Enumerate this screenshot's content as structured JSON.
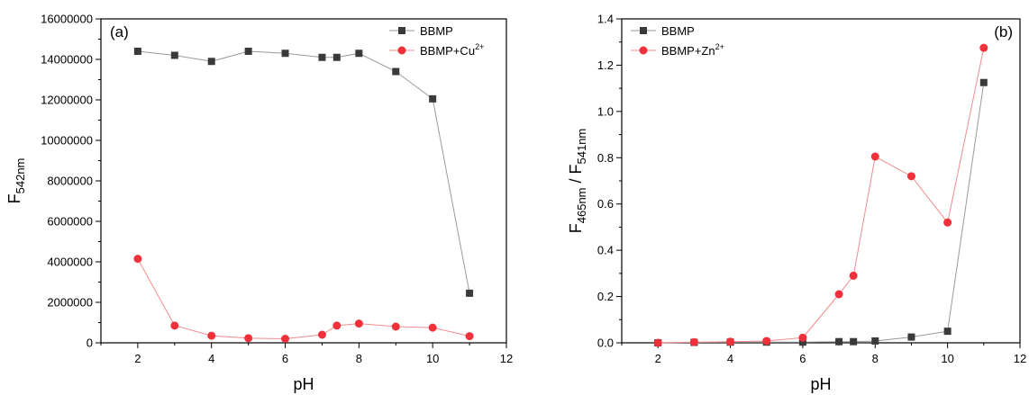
{
  "chart_data": [
    {
      "type": "line",
      "panel_label": "(a)",
      "xlabel": "pH",
      "ylabel": {
        "main": "F",
        "sub": "542nm"
      },
      "xlim": [
        1,
        12
      ],
      "ylim": [
        0,
        16000000
      ],
      "xticks": [
        2,
        4,
        6,
        8,
        10,
        12
      ],
      "yticks": [
        0,
        2000000,
        4000000,
        6000000,
        8000000,
        10000000,
        12000000,
        14000000,
        16000000
      ],
      "ytick_labels": [
        "0",
        "2000000",
        "4000000",
        "6000000",
        "8000000",
        "10000000",
        "12000000",
        "14000000",
        "16000000"
      ],
      "legend_position": "top-right",
      "series": [
        {
          "name": "BBMP",
          "marker": "square",
          "color": "#3a3a3a",
          "line_color": "#9a9a9a",
          "x": [
            2,
            3,
            4,
            5,
            6,
            7,
            7.4,
            8,
            9,
            10,
            11
          ],
          "y": [
            14400000,
            14200000,
            13900000,
            14400000,
            14300000,
            14100000,
            14100000,
            14300000,
            13400000,
            12050000,
            2450000
          ]
        },
        {
          "name": "BBMP+Cu",
          "name_sup": "2+",
          "marker": "circle",
          "color": "#f0303a",
          "line_color": "#f28c8c",
          "x": [
            2,
            3,
            4,
            5,
            6,
            7,
            7.4,
            8,
            9,
            10,
            11
          ],
          "y": [
            4150000,
            850000,
            350000,
            230000,
            200000,
            400000,
            850000,
            950000,
            800000,
            750000,
            330000
          ]
        }
      ]
    },
    {
      "type": "line",
      "panel_label": "(b)",
      "xlabel": "pH",
      "ylabel": {
        "a": "F",
        "a_sub": "465nm",
        "sep": " / F",
        "b_sub": "541nm"
      },
      "xlim": [
        1,
        12
      ],
      "ylim": [
        0,
        1.4
      ],
      "xticks": [
        2,
        4,
        6,
        8,
        10,
        12
      ],
      "yticks": [
        0,
        0.2,
        0.4,
        0.6,
        0.8,
        1.0,
        1.2,
        1.4
      ],
      "ytick_labels": [
        "0.0",
        "0.2",
        "0.4",
        "0.6",
        "0.8",
        "1.0",
        "1.2",
        "1.4"
      ],
      "legend_position": "top-left",
      "series": [
        {
          "name": "BBMP",
          "marker": "square",
          "color": "#3a3a3a",
          "line_color": "#9a9a9a",
          "x": [
            2,
            3,
            4,
            5,
            6,
            7,
            7.4,
            8,
            9,
            10,
            11
          ],
          "y": [
            0.0,
            0.002,
            0.003,
            0.003,
            0.003,
            0.005,
            0.005,
            0.008,
            0.025,
            0.05,
            1.125
          ]
        },
        {
          "name": "BBMP+Zn",
          "name_sup": "2+",
          "marker": "circle",
          "color": "#f0303a",
          "line_color": "#f28c8c",
          "x": [
            2,
            3,
            4,
            5,
            6,
            7,
            7.4,
            8,
            9,
            10,
            11
          ],
          "y": [
            0.0,
            0.003,
            0.005,
            0.008,
            0.022,
            0.21,
            0.29,
            0.805,
            0.72,
            0.52,
            1.275
          ]
        }
      ]
    }
  ]
}
